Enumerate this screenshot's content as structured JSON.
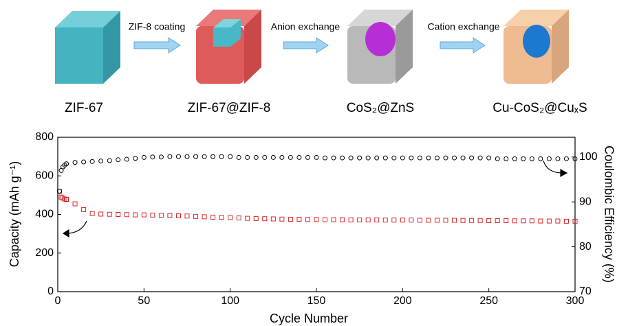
{
  "schematic": {
    "steps": [
      "ZIF-8 coating",
      "Anion exchange",
      "Cation exchange"
    ],
    "materials": [
      "ZIF-67",
      "ZIF-67@ZIF-8",
      "CoS₂@ZnS",
      "Cu-CoS₂@CuₓS"
    ]
  },
  "chart_data": {
    "type": "scatter",
    "xlabel": "Cycle Number",
    "ylabel": "Capacity (mAh g⁻¹)",
    "y2label": "Coulombic Efficiency (%)",
    "x": [
      1,
      2,
      3,
      4,
      5,
      10,
      15,
      20,
      25,
      30,
      35,
      40,
      45,
      50,
      55,
      60,
      65,
      70,
      75,
      80,
      85,
      90,
      95,
      100,
      105,
      110,
      115,
      120,
      125,
      130,
      135,
      140,
      145,
      150,
      155,
      160,
      165,
      170,
      175,
      180,
      185,
      190,
      195,
      200,
      205,
      210,
      215,
      220,
      225,
      230,
      235,
      240,
      245,
      250,
      255,
      260,
      265,
      270,
      275,
      280,
      285,
      290,
      295,
      300
    ],
    "series": [
      {
        "color": "#d62728",
        "marker": "square",
        "values": [
          520,
          490,
          485,
          480,
          478,
          455,
          425,
          405,
          402,
          401,
          400,
          399,
          398,
          398,
          397,
          396,
          395,
          393,
          392,
          390,
          388,
          386,
          385,
          384,
          382,
          380,
          379,
          378,
          377,
          376,
          375,
          375,
          374,
          374,
          373,
          373,
          373,
          372,
          372,
          372,
          372,
          371,
          371,
          371,
          371,
          370,
          370,
          370,
          370,
          370,
          369,
          369,
          369,
          368,
          368,
          368,
          367,
          367,
          367,
          366,
          366,
          366,
          365,
          365
        ]
      },
      {
        "color": "#000000",
        "marker": "circle",
        "axis": "y2",
        "values": [
          92.4,
          97.0,
          97.8,
          98.2,
          98.5,
          98.8,
          98.9,
          99.0,
          99.1,
          99.2,
          99.4,
          99.5,
          99.7,
          99.9,
          100.0,
          100.0,
          100.1,
          100.1,
          100.1,
          100.1,
          100.1,
          100.1,
          100.1,
          100.1,
          99.9,
          99.9,
          99.9,
          99.9,
          99.9,
          99.9,
          99.9,
          99.9,
          99.9,
          99.9,
          99.8,
          99.8,
          99.8,
          99.8,
          99.8,
          99.8,
          99.8,
          99.8,
          99.8,
          99.8,
          99.8,
          99.8,
          99.8,
          99.8,
          99.8,
          99.8,
          99.8,
          99.8,
          99.8,
          99.8,
          99.6,
          99.6,
          99.6,
          99.6,
          99.6,
          99.6,
          99.6,
          99.6,
          99.6,
          99.6
        ]
      }
    ],
    "xlim": [
      0,
      300
    ],
    "xticks": [
      0,
      50,
      100,
      150,
      200,
      250,
      300
    ],
    "ylim": [
      0,
      800
    ],
    "yticks": [
      0,
      200,
      400,
      600,
      800
    ],
    "y2lim": [
      70,
      104.4
    ],
    "y2ticks": [
      70,
      80,
      90,
      100
    ]
  }
}
